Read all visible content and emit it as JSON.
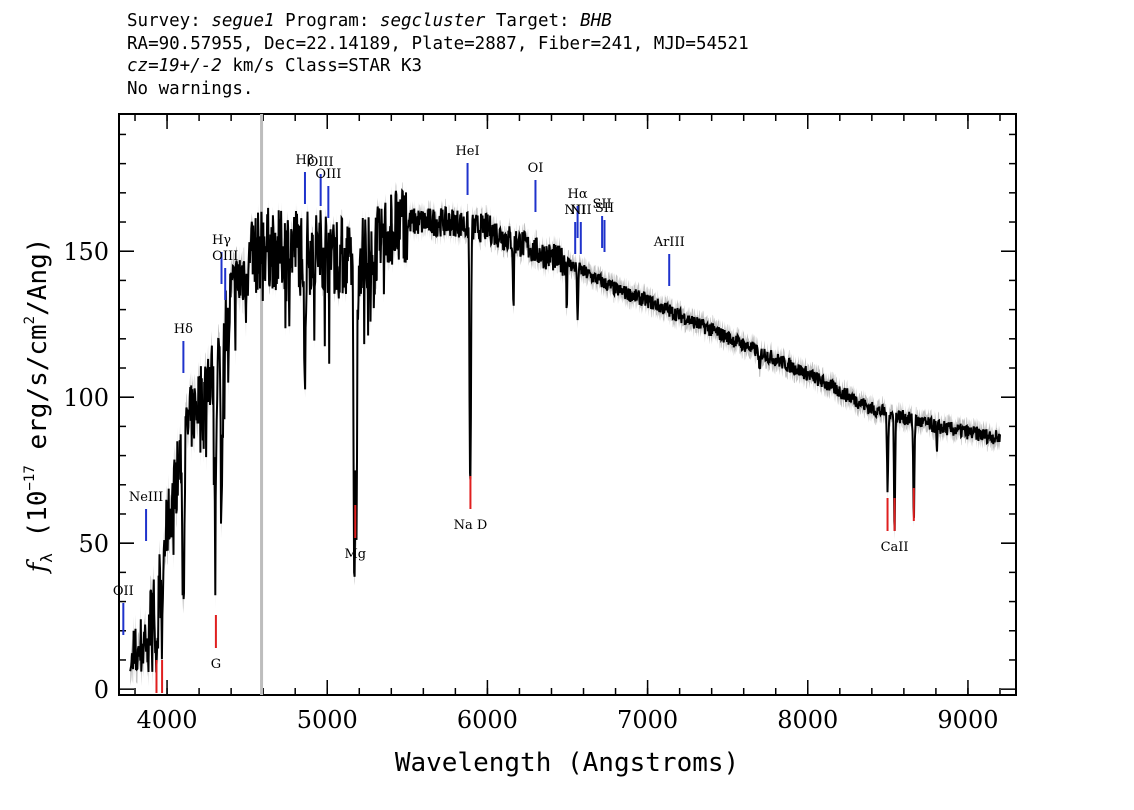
{
  "header": {
    "survey_label": "Survey:",
    "survey": "segue1",
    "program_label": "Program:",
    "program": "segcluster",
    "target_label": "Target:",
    "target": "BHB",
    "line2": "RA=90.57955, Dec=22.14189, Plate=2887, Fiber=241, MJD=54521",
    "cz": "cz=19+/-2",
    "cz_unit_class": "km/s Class=STAR K3",
    "line4": "No warnings."
  },
  "chart_data": {
    "type": "line",
    "xlabel": "Wavelength (Angstroms)",
    "ylabel_parts": [
      "f",
      "λ",
      " (10",
      "−17",
      " erg/s/cm",
      "2",
      "/Ang)"
    ],
    "xlim": [
      3700,
      9300
    ],
    "ylim": [
      -2,
      197
    ],
    "x_ticks": [
      4000,
      5000,
      6000,
      7000,
      8000,
      9000
    ],
    "y_ticks": [
      0,
      50,
      100,
      150
    ],
    "grid": false,
    "vertical_marker_x": 4590,
    "colors": {
      "spectrum": "#000000",
      "error": "#c0c0c0",
      "emission": "#1f33cc",
      "absorption": "#e01f1f",
      "marker": "#bdbdbd"
    },
    "continuum": [
      [
        3770,
        8
      ],
      [
        3850,
        15
      ],
      [
        3950,
        35
      ],
      [
        4000,
        55
      ],
      [
        4100,
        85
      ],
      [
        4200,
        100
      ],
      [
        4300,
        110
      ],
      [
        4400,
        135
      ],
      [
        4500,
        145
      ],
      [
        4600,
        152
      ],
      [
        4700,
        150
      ],
      [
        4800,
        152
      ],
      [
        4900,
        150
      ],
      [
        5000,
        152
      ],
      [
        5100,
        148
      ],
      [
        5200,
        148
      ],
      [
        5300,
        152
      ],
      [
        5400,
        158
      ],
      [
        5500,
        160
      ],
      [
        5600,
        160
      ],
      [
        5700,
        160
      ],
      [
        5800,
        160
      ],
      [
        5900,
        158
      ],
      [
        6000,
        158
      ],
      [
        6100,
        155
      ],
      [
        6200,
        153
      ],
      [
        6300,
        150
      ],
      [
        6400,
        148
      ],
      [
        6500,
        146
      ],
      [
        6600,
        143
      ],
      [
        6700,
        140
      ],
      [
        6800,
        137
      ],
      [
        7000,
        133
      ],
      [
        7200,
        128
      ],
      [
        7400,
        123
      ],
      [
        7600,
        118
      ],
      [
        7800,
        113
      ],
      [
        8000,
        108
      ],
      [
        8200,
        102
      ],
      [
        8400,
        96
      ],
      [
        8600,
        93
      ],
      [
        8800,
        90
      ],
      [
        9000,
        88
      ],
      [
        9200,
        86
      ]
    ],
    "absorption_dips": [
      [
        3934,
        35,
        6
      ],
      [
        3968,
        30,
        6
      ],
      [
        4102,
        55,
        8
      ],
      [
        4227,
        15,
        4
      ],
      [
        4300,
        60,
        8
      ],
      [
        4340,
        60,
        8
      ],
      [
        4384,
        25,
        4
      ],
      [
        4861,
        45,
        6
      ],
      [
        4920,
        20,
        3
      ],
      [
        5015,
        15,
        3
      ],
      [
        5167,
        55,
        6
      ],
      [
        5172,
        78,
        8
      ],
      [
        5183,
        75,
        6
      ],
      [
        5270,
        30,
        4
      ],
      [
        5328,
        15,
        3
      ],
      [
        5890,
        75,
        4
      ],
      [
        5896,
        70,
        4
      ],
      [
        6162,
        25,
        4
      ],
      [
        6495,
        15,
        3
      ],
      [
        6563,
        20,
        4
      ],
      [
        7700,
        8,
        6
      ],
      [
        8498,
        28,
        5
      ],
      [
        8542,
        40,
        5
      ],
      [
        8662,
        35,
        5
      ],
      [
        8806,
        10,
        4
      ]
    ],
    "emission_lines": [
      {
        "label": "OII",
        "x": 3727
      },
      {
        "label": "NeIII",
        "x": 3869
      },
      {
        "label": "Hδ",
        "x": 4102
      },
      {
        "label": "Hγ",
        "x": 4340
      },
      {
        "label": "OIII",
        "x": 4363
      },
      {
        "label": "Hβ",
        "x": 4861
      },
      {
        "label": "OIII",
        "x": 4959
      },
      {
        "label": "OIII",
        "x": 5007
      },
      {
        "label": "HeI",
        "x": 5876
      },
      {
        "label": "OI",
        "x": 6300
      },
      {
        "label": "NII",
        "x": 6548
      },
      {
        "label": "Hα",
        "x": 6563
      },
      {
        "label": "NII",
        "x": 6583
      },
      {
        "label": "SII",
        "x": 6716
      },
      {
        "label": "SII",
        "x": 6731
      },
      {
        "label": "ArIII",
        "x": 7135
      }
    ],
    "absorption_lines": [
      {
        "label": "",
        "x": 3934
      },
      {
        "label": "",
        "x": 3969
      },
      {
        "label": "G",
        "x": 4305
      },
      {
        "label": "Mg",
        "x": 5175
      },
      {
        "label": "Na D",
        "x": 5894
      },
      {
        "label": "",
        "x": 8498
      },
      {
        "label": "CaII",
        "x": 8542
      },
      {
        "label": "",
        "x": 8662
      }
    ]
  }
}
